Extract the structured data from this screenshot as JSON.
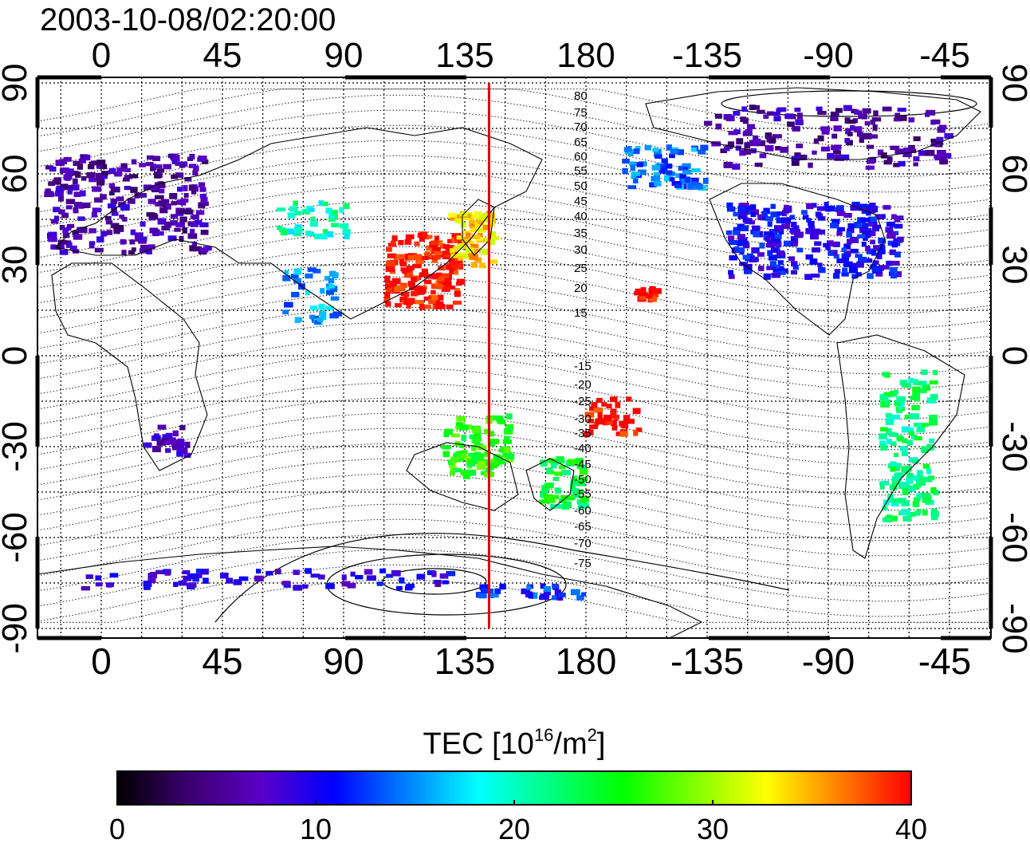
{
  "title": "2003-10-08/02:20:00",
  "map": {
    "top_lon_ticks": [
      "0",
      "45",
      "90",
      "135",
      "180",
      "-135",
      "-90",
      "-45"
    ],
    "bottom_lon_ticks": [
      "0",
      "45",
      "90",
      "135",
      "180",
      "-135",
      "-90",
      "-45"
    ],
    "left_lat_ticks": [
      "90",
      "60",
      "30",
      "0",
      "-30",
      "-60",
      "-90"
    ],
    "right_lat_ticks": [
      "90",
      "60",
      "30",
      "0",
      "-30",
      "-60",
      "-90"
    ],
    "meridian_line_lon": 144,
    "meridian_line_color": "#e00000",
    "contour_labels": [
      "80",
      "75",
      "70",
      "65",
      "60",
      "55",
      "50",
      "45",
      "40",
      "35",
      "30",
      "25",
      "20",
      "15",
      "-15",
      "-20",
      "-25",
      "-30",
      "-35",
      "-40",
      "-45",
      "-50",
      "-55",
      "-60",
      "-65",
      "-70",
      "-75"
    ]
  },
  "colorbar": {
    "label_main": "TEC  [10",
    "label_sup1": "16",
    "label_mid": "/m",
    "label_sup2": "2",
    "label_end": "]",
    "ticks": [
      "0",
      "10",
      "20",
      "30",
      "40"
    ],
    "min": 0,
    "max": 40,
    "colors": [
      "#000000",
      "#3c0070",
      "#5a00c8",
      "#0000ff",
      "#0080ff",
      "#00ffff",
      "#00ff80",
      "#00ff00",
      "#80ff00",
      "#ffff00",
      "#ff8000",
      "#ff0000"
    ]
  },
  "tec_regions": [
    {
      "name": "europe",
      "lat": 50,
      "lon": 10,
      "value": 6
    },
    {
      "name": "north-america",
      "lat": 38,
      "lon": -95,
      "value": 10
    },
    {
      "name": "canada-arctic",
      "lat": 72,
      "lon": -90,
      "value": 6
    },
    {
      "name": "alaska",
      "lat": 62,
      "lon": -150,
      "value": 14
    },
    {
      "name": "east-asia",
      "lat": 28,
      "lon": 120,
      "value": 40
    },
    {
      "name": "japan",
      "lat": 38,
      "lon": 138,
      "value": 34
    },
    {
      "name": "central-asia",
      "lat": 45,
      "lon": 80,
      "value": 20
    },
    {
      "name": "india",
      "lat": 20,
      "lon": 78,
      "value": 15
    },
    {
      "name": "australia",
      "lat": -30,
      "lon": 140,
      "value": 26
    },
    {
      "name": "new-zealand",
      "lat": -42,
      "lon": 172,
      "value": 24
    },
    {
      "name": "pacific-south",
      "lat": -20,
      "lon": -170,
      "value": 40
    },
    {
      "name": "hawaii",
      "lat": 20,
      "lon": -157,
      "value": 40
    },
    {
      "name": "south-america",
      "lat": -30,
      "lon": -60,
      "value": 22
    },
    {
      "name": "africa-south",
      "lat": -28,
      "lon": 25,
      "value": 7
    },
    {
      "name": "antarctica",
      "lat": -74,
      "lon": 60,
      "value": 9
    },
    {
      "name": "antarctica-east",
      "lat": -78,
      "lon": 160,
      "value": 12
    }
  ]
}
